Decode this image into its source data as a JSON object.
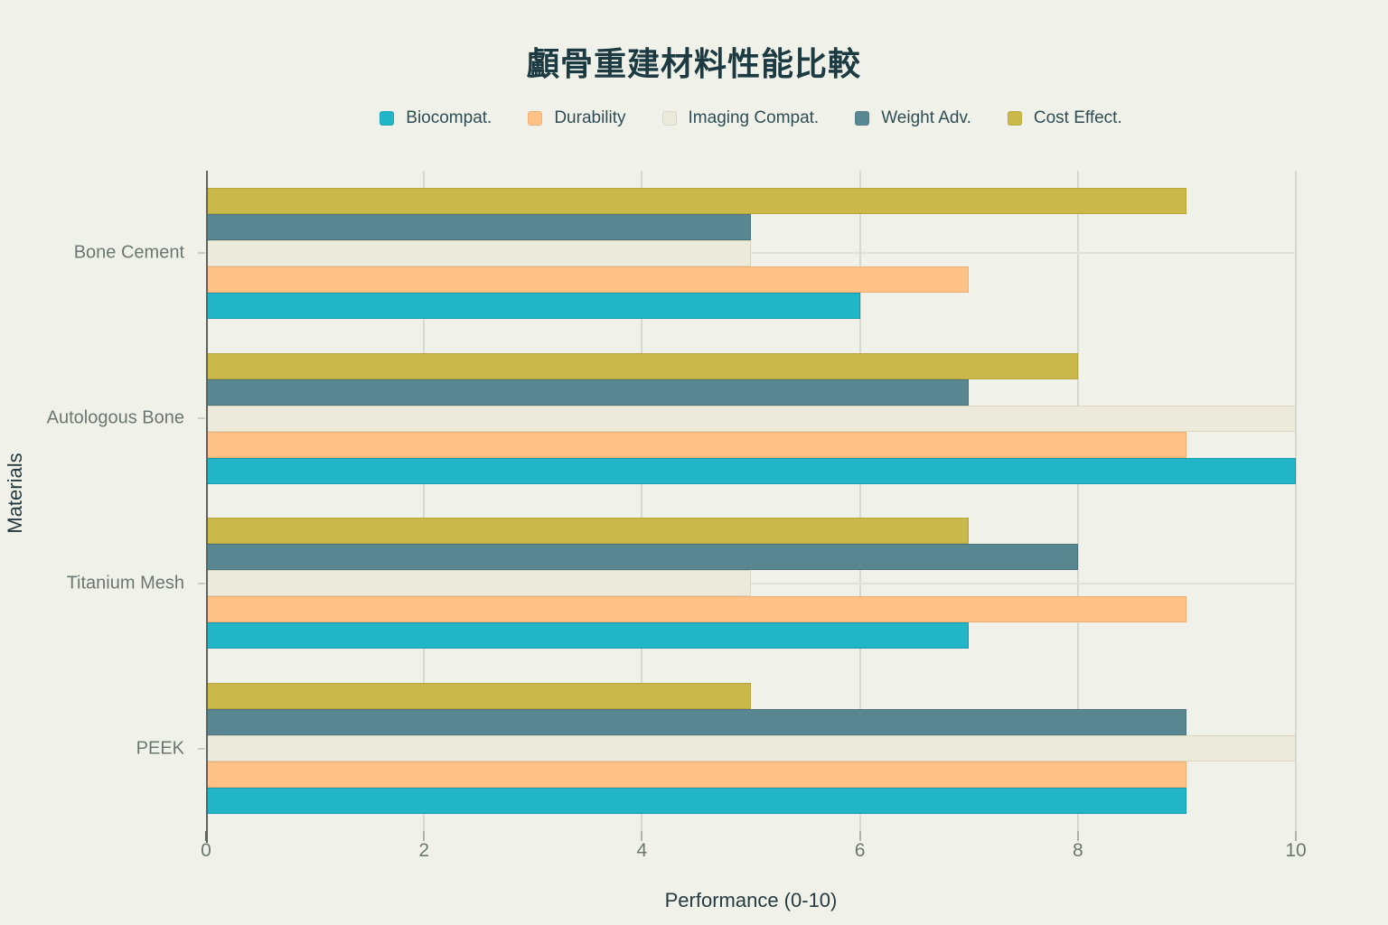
{
  "title": "顱骨重建材料性能比較",
  "colors": {
    "background": "#F0F2E9",
    "title_text": "#1C3A42",
    "legend_text": "#2F4D55",
    "tick_text": "#6C7672",
    "axis_title_text": "#263A41",
    "gridline": "#D6D9D0",
    "category_line": "#E0E2D9",
    "axis_line": "#5E6360"
  },
  "chart_data": {
    "type": "bar",
    "orientation": "horizontal",
    "title": "顱骨重建材料性能比較",
    "xlabel": "Performance (0-10)",
    "ylabel": "Materials",
    "xlim": [
      0,
      10
    ],
    "xticks": [
      0,
      2,
      4,
      6,
      8,
      10
    ],
    "grid": true,
    "legend_position": "top-center",
    "categories_order": "top-to-bottom",
    "categories": [
      "Bone Cement",
      "Autologous Bone",
      "Titanium Mesh",
      "PEEK"
    ],
    "series": [
      {
        "name": "Biocompat.",
        "color": "#21B5C7",
        "border_color": "#189CAD",
        "values": [
          6,
          10,
          7,
          9
        ]
      },
      {
        "name": "Durability",
        "color": "#FFC185",
        "border_color": "#EFAE72",
        "values": [
          7,
          9,
          9,
          9
        ]
      },
      {
        "name": "Imaging Compat.",
        "color": "#ECEADB",
        "border_color": "#D9D6BD",
        "values": [
          5,
          10,
          5,
          10
        ]
      },
      {
        "name": "Weight Adv.",
        "color": "#588791",
        "border_color": "#4A757F",
        "values": [
          5,
          7,
          8,
          9
        ]
      },
      {
        "name": "Cost Effect.",
        "color": "#CBB84A",
        "border_color": "#B6A43C",
        "values": [
          9,
          8,
          7,
          5
        ]
      }
    ],
    "note_series_stack_order_within_group": "bottom bar of each group is series[0] (Biocompat.), top bar is series[4] (Cost Effect.)"
  }
}
